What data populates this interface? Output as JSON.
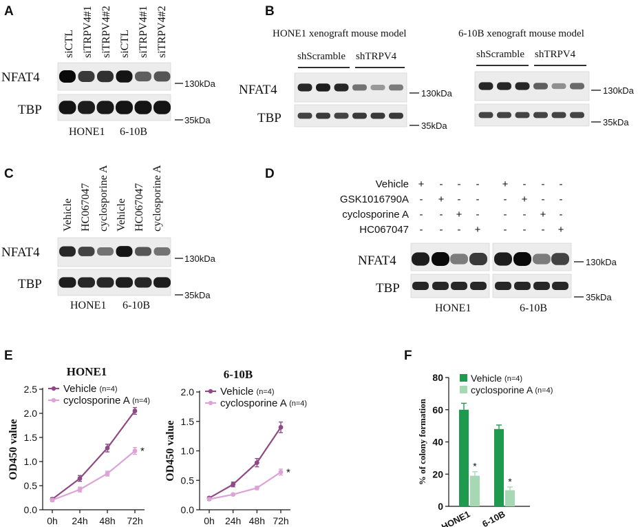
{
  "panels": {
    "A": {
      "label": "A",
      "lanes": [
        "siCTL",
        "siTRPV4#1",
        "siTRPV4#2",
        "siCTL",
        "siTRPV4#1",
        "siTRPV4#2"
      ],
      "rows": [
        {
          "name": "NFAT4",
          "marker": "130kDa",
          "intensity": [
            1.0,
            0.75,
            0.8,
            0.95,
            0.55,
            0.6
          ]
        },
        {
          "name": "TBP",
          "marker": "35kDa",
          "intensity": [
            0.95,
            0.9,
            0.92,
            0.95,
            0.95,
            0.95
          ]
        }
      ],
      "groups": [
        "HONE1",
        "6-10B"
      ]
    },
    "B": {
      "label": "B",
      "models": [
        {
          "title": "HONE1 xenograft mouse model",
          "groups": [
            "shScramble",
            "shTRPV4"
          ],
          "rows": [
            {
              "name": "NFAT4",
              "marker": "130kDa",
              "intensity": [
                0.85,
                0.9,
                0.85,
                0.45,
                0.25,
                0.4
              ]
            },
            {
              "name": "TBP",
              "marker": "35kDa",
              "intensity": [
                0.7,
                0.75,
                0.7,
                0.75,
                0.75,
                0.75
              ]
            }
          ]
        },
        {
          "title": "6-10B xenograft mouse model",
          "groups": [
            "shScramble",
            "shTRPV4"
          ],
          "rows": [
            {
              "name": "NFAT4",
              "marker": "130kDa",
              "intensity": [
                0.85,
                0.85,
                0.85,
                0.55,
                0.3,
                0.5
              ]
            },
            {
              "name": "TBP",
              "marker": "35kDa",
              "intensity": [
                0.7,
                0.7,
                0.7,
                0.7,
                0.7,
                0.7
              ]
            }
          ]
        }
      ]
    },
    "C": {
      "label": "C",
      "lanes": [
        "Vehicle",
        "HC067047",
        "cyclosporine A",
        "Vehicle",
        "HC067047",
        "cyclosporine A"
      ],
      "rows": [
        {
          "name": "NFAT4",
          "marker": "130kDa",
          "intensity": [
            0.85,
            0.7,
            0.45,
            0.95,
            0.6,
            0.45
          ]
        },
        {
          "name": "TBP",
          "marker": "35kDa",
          "intensity": [
            0.9,
            0.85,
            0.85,
            0.9,
            0.85,
            0.9
          ]
        }
      ],
      "groups": [
        "HONE1",
        "6-10B"
      ]
    },
    "D": {
      "label": "D",
      "treatments": [
        {
          "name": "Vehicle",
          "marks": [
            "+",
            "-",
            "-",
            "-",
            "+",
            "-",
            "-",
            "-"
          ]
        },
        {
          "name": "GSK1016790A",
          "marks": [
            "-",
            "+",
            "-",
            "-",
            "-",
            "+",
            "-",
            "-"
          ]
        },
        {
          "name": "cyclosporine A",
          "marks": [
            "-",
            "-",
            "+",
            "-",
            "-",
            "-",
            "+",
            "-"
          ]
        },
        {
          "name": "HC067047",
          "marks": [
            "-",
            "-",
            "-",
            "+",
            "-",
            "-",
            "-",
            "+"
          ]
        }
      ],
      "rows": [
        {
          "name": "NFAT4",
          "marker": "130kDa",
          "intensity": [
            0.9,
            1.0,
            0.4,
            0.75,
            0.9,
            1.0,
            0.4,
            0.7
          ]
        },
        {
          "name": "TBP",
          "marker": "35kDa",
          "intensity": [
            0.85,
            0.85,
            0.85,
            0.85,
            0.85,
            0.85,
            0.85,
            0.85
          ]
        }
      ],
      "groups": [
        "HONE1",
        "6-10B"
      ]
    },
    "E": {
      "label": "E"
    },
    "F": {
      "label": "F"
    }
  },
  "chart_data": [
    {
      "type": "line",
      "title": "HONE1",
      "xlabel": "",
      "ylabel": "OD450 value",
      "x": [
        "0h",
        "24h",
        "48h",
        "72h"
      ],
      "ylim": [
        0,
        2.5
      ],
      "yticks": [
        "0.0",
        "0.5",
        "1.0",
        "1.5",
        "2.0",
        "2.5"
      ],
      "legend_position": "top-left",
      "series": [
        {
          "name": "Vehicle",
          "n_label": "(n=4)",
          "values": [
            0.22,
            0.65,
            1.28,
            2.05
          ],
          "errors": [
            0.03,
            0.06,
            0.08,
            0.07
          ]
        },
        {
          "name": "cyclosporine A",
          "n_label": "(n=4)",
          "values": [
            0.2,
            0.42,
            0.75,
            1.22
          ],
          "errors": [
            0.03,
            0.05,
            0.05,
            0.07
          ]
        }
      ],
      "annotations": [
        {
          "text": "*",
          "series": 1,
          "x": "72h"
        }
      ]
    },
    {
      "type": "line",
      "title": "6-10B",
      "xlabel": "",
      "ylabel": "OD450 value",
      "x": [
        "0h",
        "24h",
        "48h",
        "72h"
      ],
      "ylim": [
        0,
        2.0
      ],
      "yticks": [
        "0.0",
        "0.5",
        "1.0",
        "1.5",
        "2.0"
      ],
      "legend_position": "top-left",
      "series": [
        {
          "name": "Vehicle",
          "n_label": "(n=4)",
          "values": [
            0.2,
            0.43,
            0.8,
            1.4
          ],
          "errors": [
            0.02,
            0.04,
            0.07,
            0.09
          ]
        },
        {
          "name": "cyclosporine A",
          "n_label": "(n=4)",
          "values": [
            0.18,
            0.26,
            0.37,
            0.64
          ],
          "errors": [
            0.02,
            0.02,
            0.03,
            0.05
          ]
        }
      ],
      "annotations": [
        {
          "text": "*",
          "series": 1,
          "x": "72h"
        }
      ]
    },
    {
      "type": "bar",
      "title": "",
      "xlabel": "",
      "ylabel": "% of colony formation",
      "categories": [
        "HONE1",
        "6-10B"
      ],
      "ylim": [
        0,
        80
      ],
      "yticks": [
        "0",
        "20",
        "40",
        "60",
        "80"
      ],
      "legend_position": "top-left",
      "series": [
        {
          "name": "Vehicle",
          "n_label": "(n=4)",
          "values": [
            60,
            48
          ],
          "errors": [
            4,
            2.5
          ],
          "color": "#1e9a4e"
        },
        {
          "name": "cyclosporine A",
          "n_label": "(n=4)",
          "values": [
            19,
            10
          ],
          "errors": [
            2.5,
            2
          ],
          "color": "#a6d9b3"
        }
      ],
      "annotations": [
        {
          "text": "*",
          "series": 1,
          "category": "HONE1"
        },
        {
          "text": "*",
          "series": 1,
          "category": "6-10B"
        }
      ]
    }
  ],
  "colors": {
    "vehicle_line": "#8e4a86",
    "cyclo_line": "#dda2d6",
    "vehicle_bar": "#1e9a4e",
    "cyclo_bar": "#a6d9b3"
  }
}
